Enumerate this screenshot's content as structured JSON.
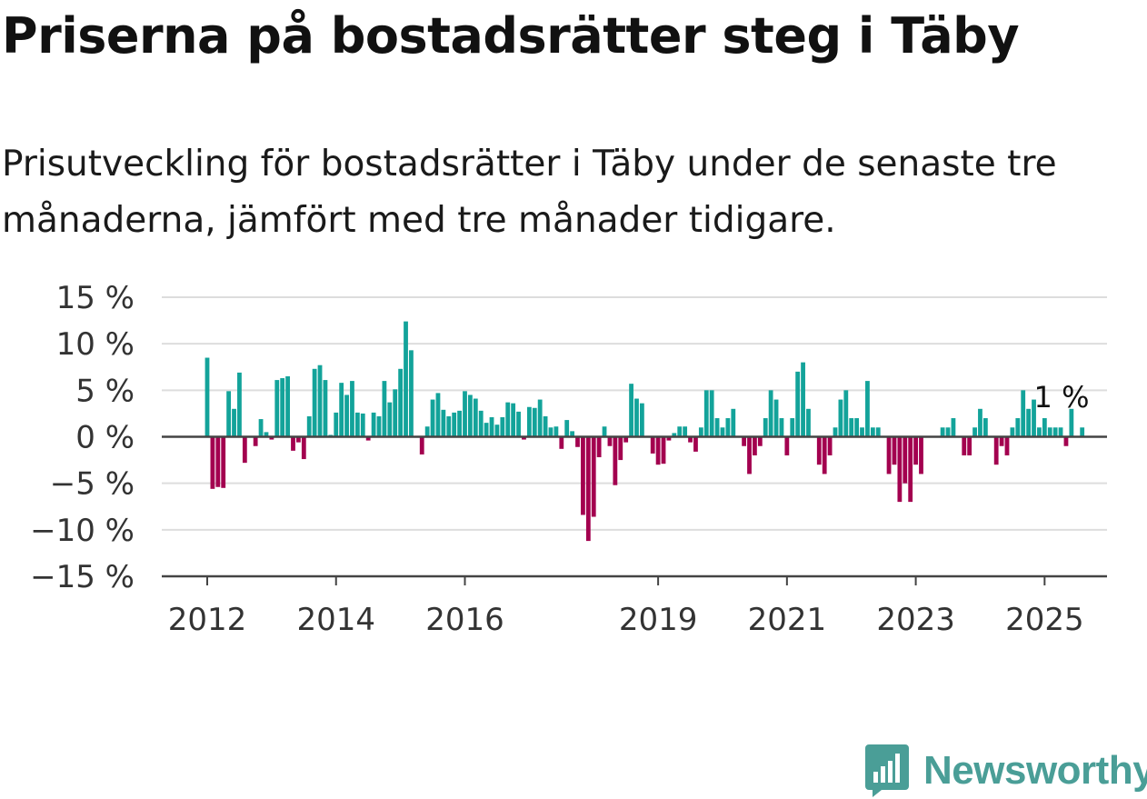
{
  "title": "Priserna på bostadsrätter steg i Täby",
  "subtitle": "Prisutveckling för bostadsrätter i Täby under de senaste tre månaderna, jämfört med tre månader tidigare.",
  "brand": {
    "name": "Newsworthy",
    "icon": "newsworthy-logo-icon"
  },
  "colors": {
    "positive": "#13a39a",
    "negative": "#a3004f",
    "grid": "#dddddd",
    "axis": "#444444"
  },
  "chart_data": {
    "type": "bar",
    "unit": "%",
    "ylim": [
      -15,
      15
    ],
    "y_ticks": [
      {
        "value": 15,
        "label": "15 %"
      },
      {
        "value": 10,
        "label": "10 %"
      },
      {
        "value": 5,
        "label": "5 %"
      },
      {
        "value": 0,
        "label": "0 %"
      },
      {
        "value": -5,
        "label": "−5 %"
      },
      {
        "value": -10,
        "label": "−10 %"
      },
      {
        "value": -15,
        "label": "−15 %"
      }
    ],
    "x_ticks": [
      {
        "value": "2012-01",
        "label": "2012"
      },
      {
        "value": "2014-01",
        "label": "2014"
      },
      {
        "value": "2016-01",
        "label": "2016"
      },
      {
        "value": "2019-01",
        "label": "2019"
      },
      {
        "value": "2021-01",
        "label": "2021"
      },
      {
        "value": "2023-01",
        "label": "2023"
      },
      {
        "value": "2025-01",
        "label": "2025"
      }
    ],
    "grid": true,
    "end_label": "1 %",
    "start": "2012-01",
    "values": [
      8.5,
      -5.6,
      -5.4,
      -5.5,
      4.9,
      3.0,
      6.9,
      -2.8,
      0,
      -1.0,
      1.9,
      0.5,
      -0.3,
      6.1,
      6.3,
      6.5,
      -1.5,
      -0.6,
      -2.4,
      2.2,
      7.3,
      7.7,
      6.1,
      0.2,
      2.6,
      5.8,
      4.5,
      6.0,
      2.6,
      2.5,
      -0.4,
      2.6,
      2.2,
      6.0,
      3.7,
      5.1,
      7.3,
      12.4,
      9.3,
      0,
      -1.9,
      1.1,
      4.0,
      4.7,
      2.9,
      2.2,
      2.6,
      2.8,
      4.9,
      4.5,
      4.1,
      2.8,
      1.5,
      2.1,
      1.3,
      2.1,
      3.7,
      3.6,
      2.7,
      -0.3,
      3.2,
      3.1,
      4.0,
      2.2,
      1.0,
      1.1,
      -1.3,
      1.8,
      0.6,
      -1.1,
      -8.4,
      -11.2,
      -8.6,
      -2.2,
      1.1,
      -1.0,
      -5.2,
      -2.5,
      -0.6,
      5.7,
      4.1,
      3.6,
      0,
      -1.8,
      -3.0,
      -2.9,
      -0.4,
      0.4,
      1.1,
      1.1,
      -0.6,
      -1.6,
      1.0,
      5.0,
      5.0,
      2.0,
      1.0,
      2.0,
      3.0,
      0,
      -1.0,
      -4.0,
      -2.0,
      -1.0,
      2.0,
      5.0,
      4.0,
      2.0,
      -2.0,
      2.0,
      7.0,
      8.0,
      3.0,
      0,
      -3.0,
      -4.0,
      -2.0,
      1.0,
      4.0,
      5.0,
      2.0,
      2.0,
      1.0,
      6.0,
      1.0,
      1.0,
      0,
      -4.0,
      -3.0,
      -7.0,
      -5.0,
      -7.0,
      -3.0,
      -4.0,
      0,
      0,
      0,
      1.0,
      1.0,
      2.0,
      0,
      -2.0,
      -2.0,
      1.0,
      3.0,
      2.0,
      0,
      -3.0,
      -1.0,
      -2.0,
      1.0,
      2.0,
      5.0,
      3.0,
      4.0,
      1.0,
      2.0,
      1.0,
      1.0,
      1.0,
      -1.0,
      3.0,
      0,
      1.0
    ]
  }
}
